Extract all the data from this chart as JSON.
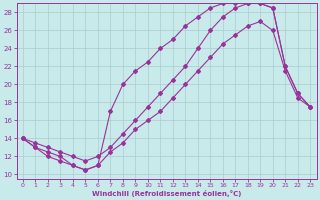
{
  "xlabel": "Windchill (Refroidissement éolien,°C)",
  "bg_color": "#c8eaea",
  "line_color": "#993399",
  "grid_color": "#aacccc",
  "xlim": [
    -0.5,
    23.5
  ],
  "ylim": [
    9.5,
    29
  ],
  "xticks": [
    0,
    1,
    2,
    3,
    4,
    5,
    6,
    7,
    8,
    9,
    10,
    11,
    12,
    13,
    14,
    15,
    16,
    17,
    18,
    19,
    20,
    21,
    22,
    23
  ],
  "yticks": [
    10,
    12,
    14,
    16,
    18,
    20,
    22,
    24,
    26,
    28
  ],
  "curve1_x": [
    0,
    1,
    2,
    3,
    4,
    5,
    6,
    7,
    8,
    9,
    10,
    11,
    12,
    13,
    14,
    15,
    16,
    17,
    18,
    19,
    20,
    21,
    22,
    23
  ],
  "curve1_y": [
    14,
    13,
    12.5,
    12,
    11,
    10.5,
    11,
    12.5,
    13.5,
    15,
    16,
    17,
    18.5,
    20,
    21.5,
    23,
    24.5,
    25.5,
    26.5,
    27,
    26,
    21.5,
    18.5,
    17.5
  ],
  "curve2_x": [
    0,
    1,
    2,
    3,
    4,
    5,
    6,
    7,
    8,
    9,
    10,
    11,
    12,
    13,
    14,
    15,
    16,
    17,
    18,
    19,
    20,
    21,
    22,
    23
  ],
  "curve2_y": [
    14,
    13.5,
    13,
    12.5,
    12,
    11.5,
    12,
    13,
    14.5,
    16,
    17.5,
    19,
    20.5,
    22,
    24,
    26,
    27.5,
    28.5,
    29,
    29,
    28.5,
    22,
    19,
    17.5
  ],
  "curve3_x": [
    0,
    1,
    2,
    3,
    4,
    5,
    6,
    7,
    8,
    9,
    10,
    11,
    12,
    13,
    14,
    15,
    16,
    17,
    18,
    19,
    20,
    21,
    22,
    23
  ],
  "curve3_y": [
    14,
    13,
    12,
    11.5,
    11,
    10.5,
    11,
    17,
    20,
    21.5,
    22.5,
    24,
    25,
    26.5,
    27.5,
    28.5,
    29,
    29,
    29,
    29,
    28.5,
    22,
    19,
    17.5
  ]
}
